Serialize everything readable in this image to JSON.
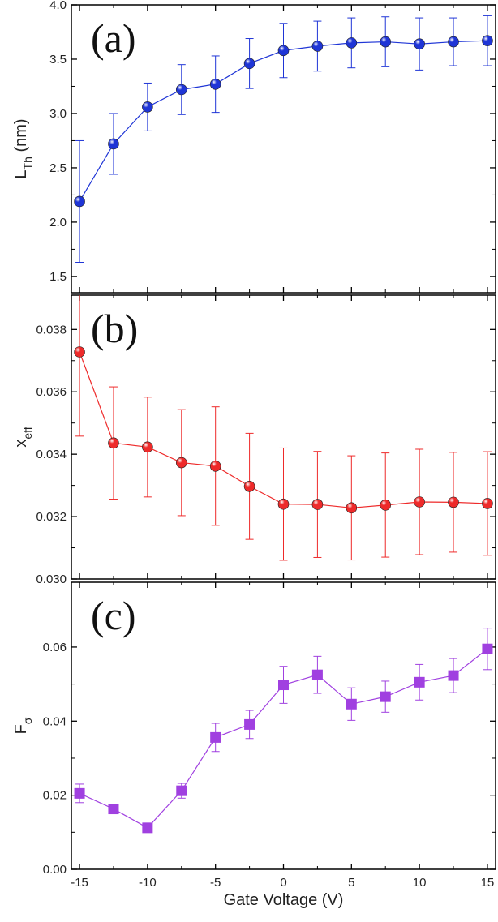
{
  "chart_data": [
    {
      "type": "line",
      "panel_tag": "(a)",
      "xlabel": "",
      "ylabel": "L",
      "ylabel_sub": "Th",
      "ylabel_suffix": " (nm)",
      "xlim": [
        -15.6,
        15.6
      ],
      "ylim": [
        1.35,
        4.0
      ],
      "yticks": [
        1.5,
        2.0,
        2.5,
        3.0,
        3.5,
        4.0
      ],
      "ytick_labels": [
        "1.5",
        "2.0",
        "2.5",
        "3.0",
        "3.5",
        "4.0"
      ],
      "marker": "circle",
      "color": "#1f35d6",
      "grid": false,
      "series": [
        {
          "x": [
            -15,
            -12.5,
            -10,
            -7.5,
            -5,
            -2.5,
            0,
            2.5,
            5,
            7.5,
            10,
            12.5,
            15
          ],
          "y": [
            2.19,
            2.72,
            3.06,
            3.22,
            3.27,
            3.46,
            3.58,
            3.62,
            3.65,
            3.66,
            3.64,
            3.66,
            3.67
          ],
          "err": [
            0.56,
            0.28,
            0.22,
            0.23,
            0.26,
            0.23,
            0.25,
            0.23,
            0.23,
            0.23,
            0.24,
            0.22,
            0.23
          ]
        }
      ]
    },
    {
      "type": "line",
      "panel_tag": "(b)",
      "xlabel": "",
      "ylabel": "x",
      "ylabel_sub": "eff",
      "ylabel_suffix": "",
      "xlim": [
        -15.6,
        15.6
      ],
      "ylim": [
        0.03,
        0.0391
      ],
      "yticks": [
        0.03,
        0.032,
        0.034,
        0.036,
        0.038
      ],
      "ytick_labels": [
        "0.030",
        "0.032",
        "0.034",
        "0.036",
        "0.038"
      ],
      "marker": "circle",
      "color": "#ee2a2a",
      "grid": false,
      "series": [
        {
          "x": [
            -15,
            -12.5,
            -10,
            -7.5,
            -5,
            -2.5,
            0,
            2.5,
            5,
            7.5,
            10,
            12.5,
            15
          ],
          "y": [
            0.03728,
            0.03436,
            0.03423,
            0.03373,
            0.03362,
            0.03297,
            0.0324,
            0.03239,
            0.03228,
            0.03237,
            0.03247,
            0.03246,
            0.03242
          ],
          "err": [
            0.0027,
            0.0018,
            0.0016,
            0.0017,
            0.0019,
            0.0017,
            0.0018,
            0.0017,
            0.00167,
            0.00167,
            0.00169,
            0.0016,
            0.00166
          ]
        }
      ]
    },
    {
      "type": "line",
      "panel_tag": "(c)",
      "xlabel": "Gate Voltage (V)",
      "ylabel": "F",
      "ylabel_sub": "σ",
      "ylabel_suffix": "",
      "xlim": [
        -15.6,
        15.6
      ],
      "ylim": [
        0.0,
        0.0775
      ],
      "yticks": [
        0.0,
        0.02,
        0.04,
        0.06
      ],
      "ytick_labels": [
        "0.00",
        "0.02",
        "0.04",
        "0.06"
      ],
      "xticks": [
        -15,
        -10,
        -5,
        0,
        5,
        10,
        15
      ],
      "xtick_labels": [
        "-15",
        "-10",
        "-5",
        "0",
        "5",
        "10",
        "15"
      ],
      "marker": "square",
      "color": "#a040e0",
      "grid": false,
      "series": [
        {
          "x": [
            -15,
            -12.5,
            -10,
            -7.5,
            -5,
            -2.5,
            0,
            2.5,
            5,
            7.5,
            10,
            12.5,
            15
          ],
          "y": [
            0.0205,
            0.0163,
            0.0112,
            0.0212,
            0.0356,
            0.0391,
            0.0498,
            0.0525,
            0.0446,
            0.0466,
            0.0505,
            0.0523,
            0.0595
          ],
          "err": [
            0.0025,
            0.0012,
            0.0006,
            0.002,
            0.0038,
            0.0038,
            0.005,
            0.005,
            0.0044,
            0.0042,
            0.0048,
            0.0046,
            0.0056
          ]
        }
      ]
    }
  ]
}
